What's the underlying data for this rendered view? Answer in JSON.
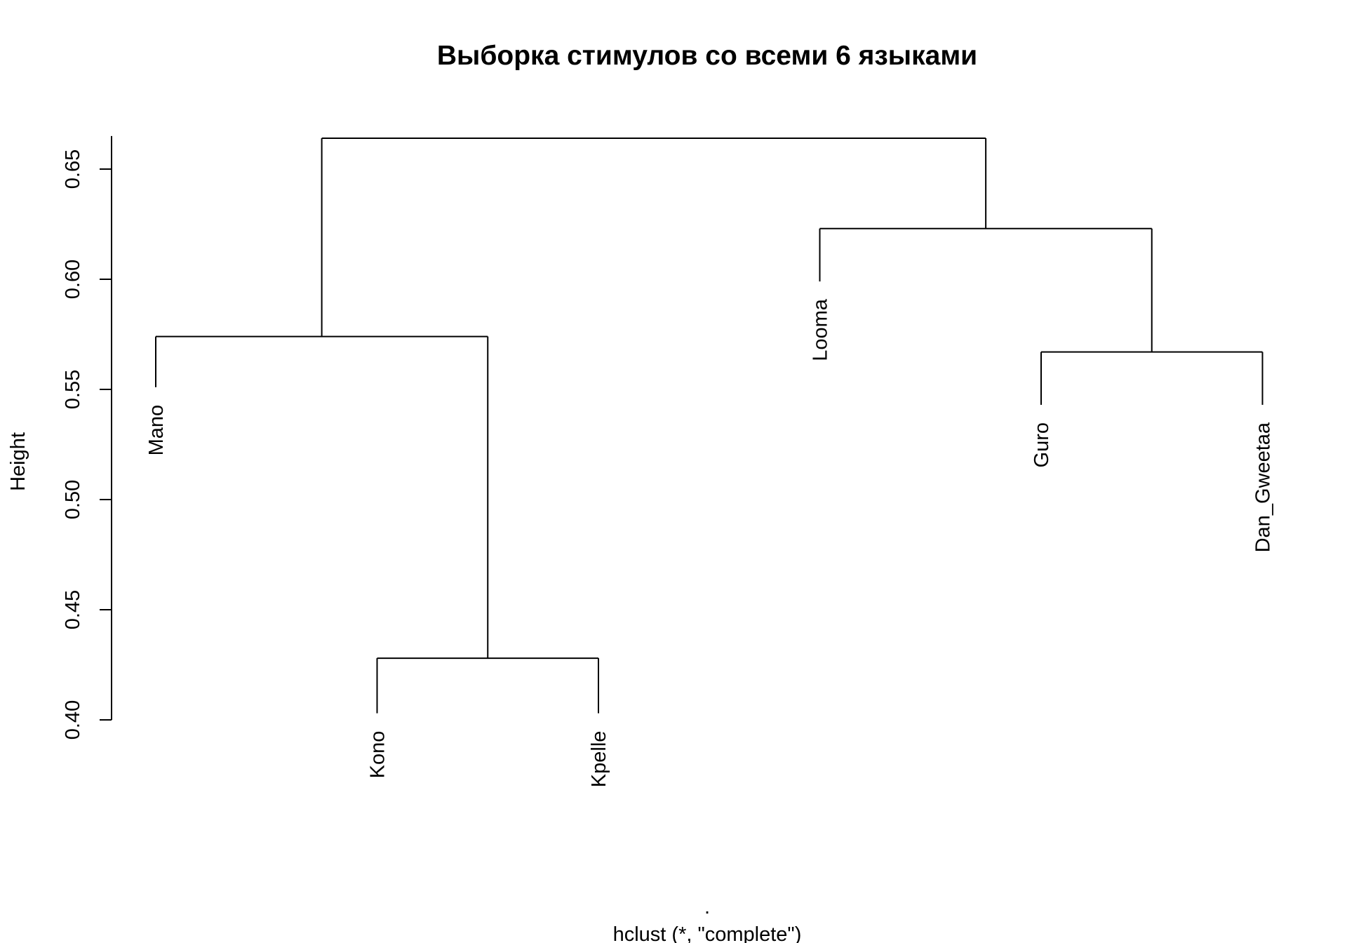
{
  "chart_data": {
    "type": "dendrogram",
    "title": "Выборка стимулов со всеми 6 языками",
    "ylabel": "Height",
    "xlabel": ".",
    "subtitle": "hclust (*, \"complete\")",
    "ylim": [
      0.4,
      0.665
    ],
    "yticks": [
      0.4,
      0.45,
      0.5,
      0.55,
      0.6,
      0.65
    ],
    "ytick_labels": [
      "0.40",
      "0.45",
      "0.50",
      "0.55",
      "0.60",
      "0.65"
    ],
    "leaves": [
      {
        "label": "Mano",
        "height": 0.551
      },
      {
        "label": "Kono",
        "height": 0.403
      },
      {
        "label": "Kpelle",
        "height": 0.403
      },
      {
        "label": "Looma",
        "height": 0.599
      },
      {
        "label": "Guro",
        "height": 0.543
      },
      {
        "label": "Dan_Gweetaa",
        "height": 0.543
      }
    ],
    "merges": [
      {
        "left": "Kono",
        "right": "Kpelle",
        "height": 0.428
      },
      {
        "left": "Guro",
        "right": "Dan_Gweetaa",
        "height": 0.567
      },
      {
        "left": "Mano",
        "right": "Kono+Kpelle",
        "height": 0.574
      },
      {
        "left": "Looma",
        "right": "Guro+Dan_Gweetaa",
        "height": 0.623
      },
      {
        "left": "Mano+Kono+Kpelle",
        "right": "Looma+Guro+Dan_Gweetaa",
        "height": 0.664
      }
    ]
  }
}
